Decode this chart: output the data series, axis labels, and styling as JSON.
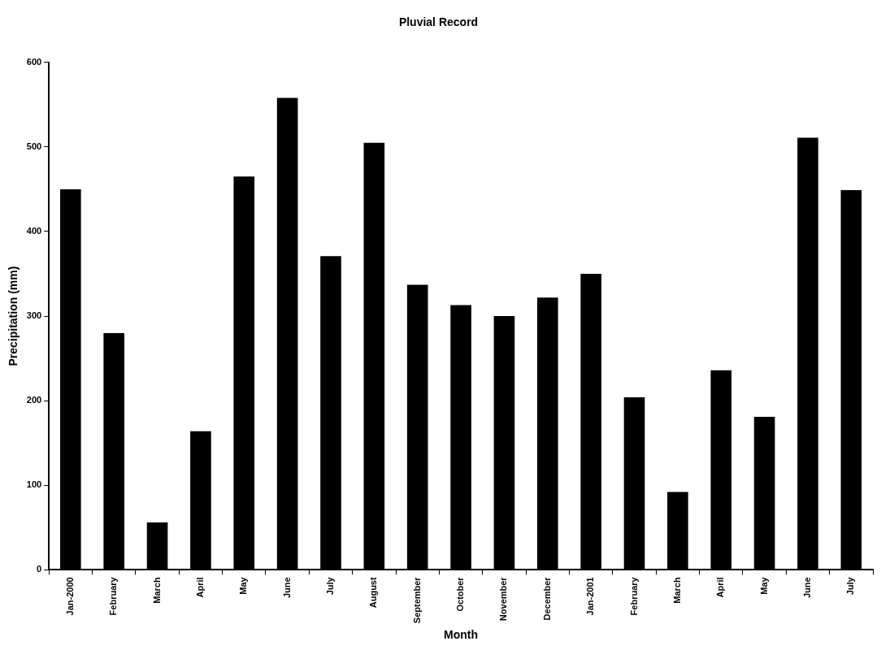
{
  "chart_data": {
    "type": "bar",
    "title": "Pluvial Record",
    "xlabel": "Month",
    "ylabel": "Precipitation (mm)",
    "categories": [
      "Jan-2000",
      "February",
      "March",
      "April",
      "May",
      "June",
      "July",
      "August",
      "September",
      "October",
      "November",
      "December",
      "Jan-2001",
      "February",
      "March",
      "April",
      "May",
      "June",
      "July"
    ],
    "values": [
      450,
      280,
      56,
      164,
      465,
      558,
      371,
      505,
      337,
      313,
      300,
      322,
      350,
      204,
      92,
      236,
      181,
      511,
      449
    ],
    "color": "#000000",
    "ylim": [
      0,
      600
    ],
    "yticks": [
      0,
      100,
      200,
      300,
      400,
      500,
      600
    ],
    "grid": false,
    "legend": false
  }
}
